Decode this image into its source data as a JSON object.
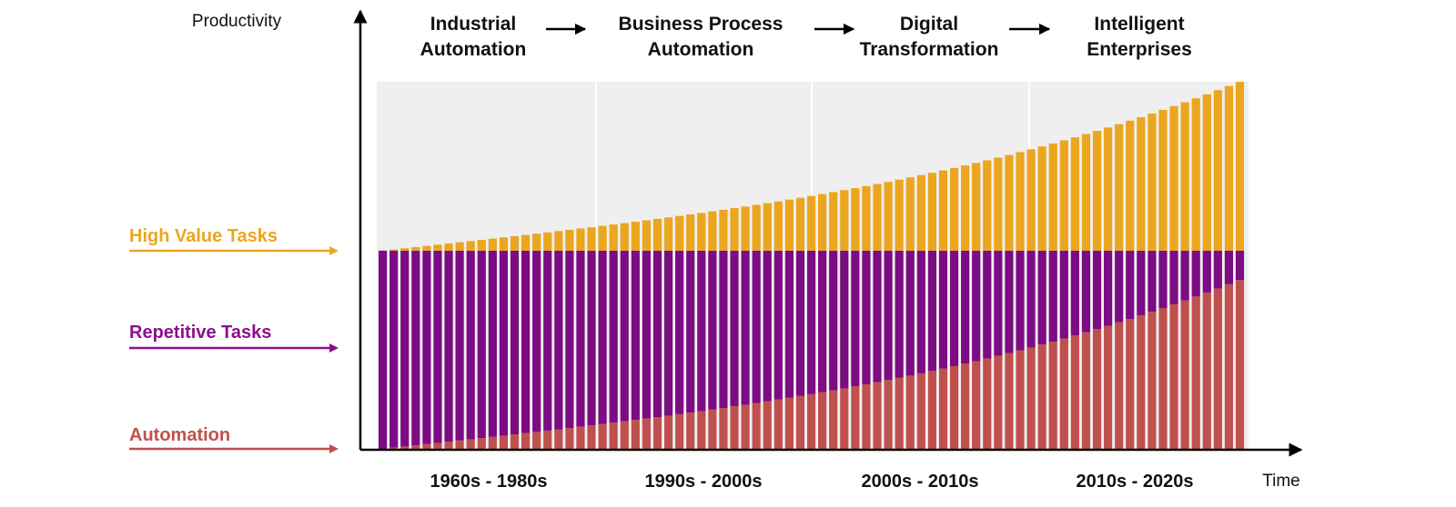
{
  "chart_data": {
    "type": "bar",
    "title": "",
    "ylabel": "Productivity",
    "xlabel": "Time",
    "stacked": true,
    "bar_count": 79,
    "periods": [
      "1960s - 1980s",
      "1990s - 2000s",
      "2000s - 2010s",
      "2010s - 2020s"
    ],
    "eras": [
      {
        "line1": "Industrial",
        "line2": "Automation"
      },
      {
        "line1": "Business Process",
        "line2": "Automation"
      },
      {
        "line1": "Digital",
        "line2": "Transformation"
      },
      {
        "line1": "Intelligent",
        "line2": "Enterprises"
      }
    ],
    "ylim": [
      0,
      1
    ],
    "series": [
      {
        "name": "Automation",
        "color": "#C0504D",
        "start": 0.0,
        "end": 0.46
      },
      {
        "name": "Repetitive Tasks",
        "color": "#7B0C84",
        "total": 0.54
      },
      {
        "name": "High Value Tasks",
        "color": "#EBA61E",
        "start": 0.0,
        "end": 0.46
      }
    ],
    "legend": [
      {
        "label": "High Value Tasks",
        "color": "#EBA61E"
      },
      {
        "label": "Repetitive Tasks",
        "color": "#8E0F8C"
      },
      {
        "label": "Automation",
        "color": "#C0504D"
      }
    ],
    "grid": false,
    "background_band_color": "#EFEFEF"
  }
}
